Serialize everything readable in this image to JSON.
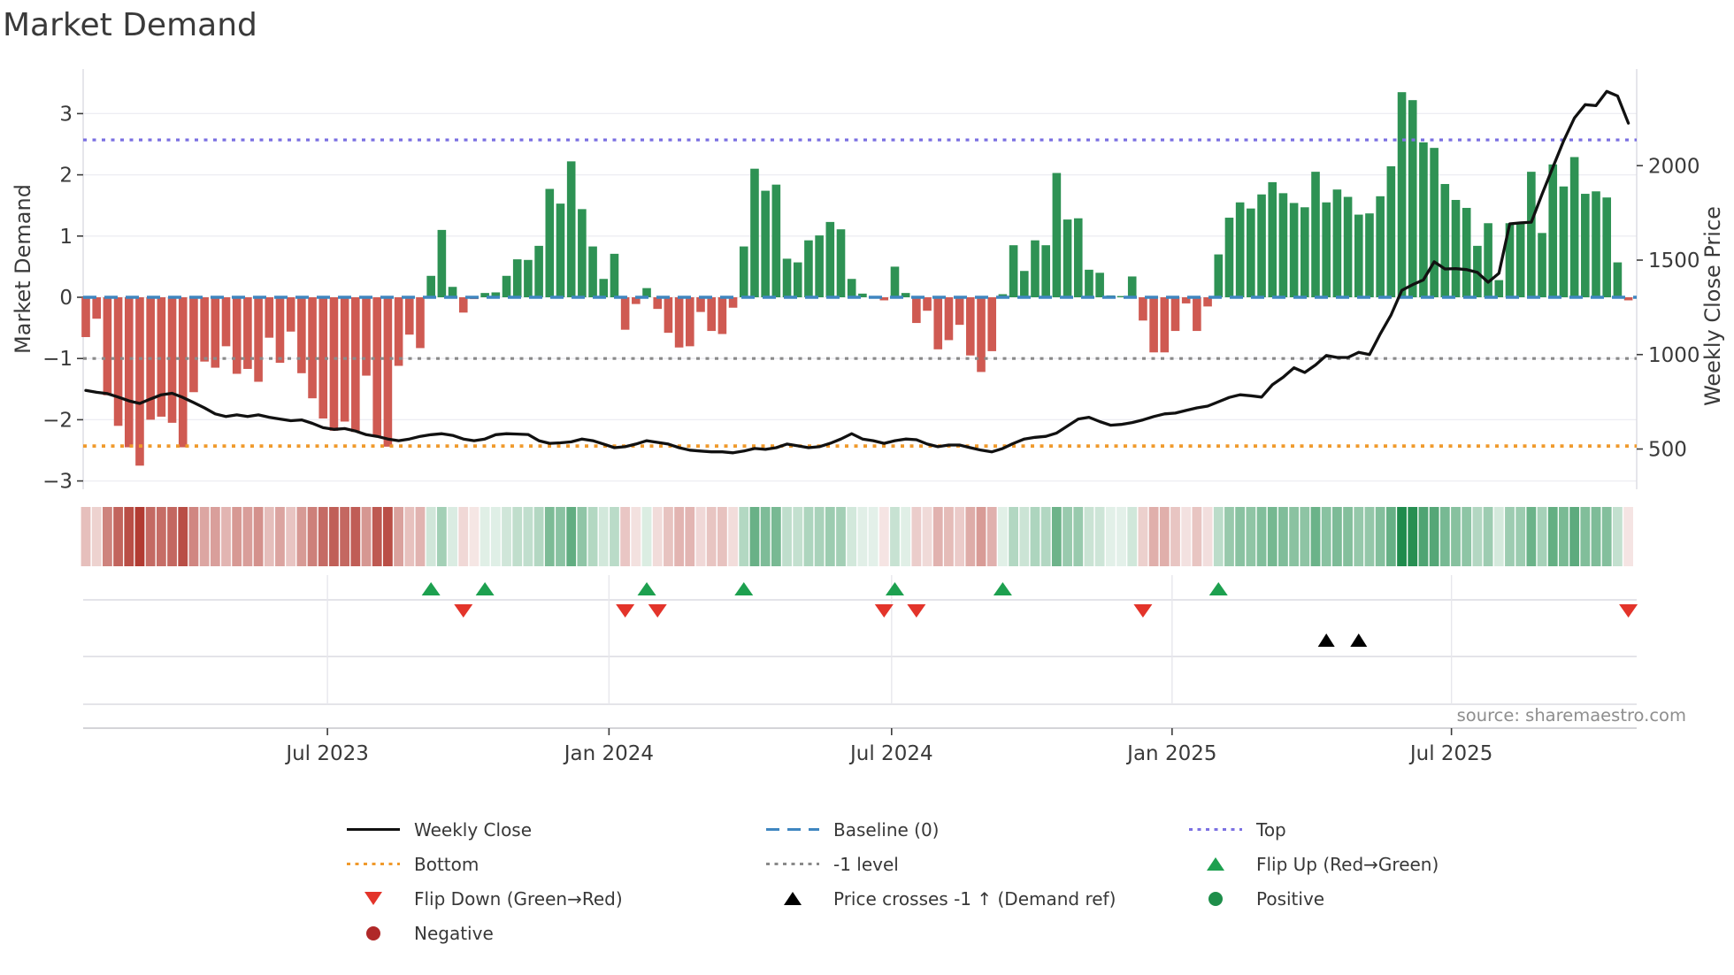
{
  "title": "Market Demand",
  "source": "source: sharemaestro.com",
  "left_axis": {
    "label": "Market Demand",
    "ticks": [
      3,
      2,
      1,
      0,
      -1,
      -2,
      -3
    ]
  },
  "right_axis": {
    "label": "Weekly Close Price",
    "ticks": [
      2000,
      1500,
      1000,
      500
    ]
  },
  "x_axis": {
    "ticks": [
      {
        "label": "Jul 2023",
        "pos": 22.4
      },
      {
        "label": "Jan 2024",
        "pos": 48.5
      },
      {
        "label": "Jul 2024",
        "pos": 74.7
      },
      {
        "label": "Jan 2025",
        "pos": 100.7
      },
      {
        "label": "Jul 2025",
        "pos": 126.6
      }
    ]
  },
  "chart_data": {
    "type": "bar+line",
    "x_unit": "week",
    "n_points": 144,
    "left_ylim": [
      -3.15,
      3.95
    ],
    "right_ylim": [
      285,
      2560
    ],
    "grid": "horizontal",
    "series": [
      {
        "name": "Market Demand",
        "type": "bar",
        "axis": "left",
        "values": [
          -0.65,
          -0.35,
          -1.6,
          -2.1,
          -2.45,
          -2.75,
          -2.0,
          -1.95,
          -2.05,
          -2.45,
          -1.55,
          -1.05,
          -1.15,
          -0.8,
          -1.25,
          -1.17,
          -1.38,
          -0.66,
          -1.07,
          -0.56,
          -1.24,
          -1.65,
          -1.98,
          -2.18,
          -2.03,
          -2.2,
          -1.28,
          -2.27,
          -2.44,
          -1.12,
          -0.61,
          -0.83,
          0.35,
          1.1,
          0.17,
          -0.25,
          -0.03,
          0.07,
          0.08,
          0.35,
          0.62,
          0.61,
          0.84,
          1.77,
          1.53,
          2.22,
          1.44,
          0.83,
          0.3,
          0.71,
          -0.53,
          -0.11,
          0.15,
          -0.19,
          -0.58,
          -0.82,
          -0.8,
          -0.24,
          -0.55,
          -0.6,
          -0.17,
          0.83,
          2.1,
          1.74,
          1.84,
          0.63,
          0.57,
          0.93,
          1.01,
          1.23,
          1.11,
          0.3,
          0.06,
          0.02,
          -0.05,
          0.5,
          0.07,
          -0.42,
          -0.22,
          -0.85,
          -0.7,
          -0.45,
          -0.95,
          -1.22,
          -0.88,
          0.05,
          0.85,
          0.43,
          0.93,
          0.85,
          2.03,
          1.27,
          1.29,
          0.45,
          0.4,
          0.03,
          0.02,
          0.34,
          -0.38,
          -0.9,
          -0.9,
          -0.55,
          -0.1,
          -0.55,
          -0.15,
          0.7,
          1.3,
          1.55,
          1.45,
          1.68,
          1.88,
          1.7,
          1.54,
          1.47,
          2.05,
          1.55,
          1.76,
          1.64,
          1.35,
          1.37,
          1.65,
          2.14,
          3.35,
          3.22,
          2.53,
          2.44,
          1.85,
          1.59,
          1.46,
          0.84,
          1.21,
          0.28,
          1.21,
          1.22,
          2.05,
          1.05,
          2.17,
          1.81,
          2.29,
          1.69,
          1.73,
          1.63,
          0.57,
          -0.05
        ]
      },
      {
        "name": "Weekly Close",
        "type": "line",
        "axis": "right",
        "values": [
          810,
          800,
          793,
          775,
          755,
          741,
          765,
          787,
          795,
          773,
          746,
          718,
          686,
          672,
          681,
          672,
          681,
          668,
          659,
          650,
          654,
          636,
          613,
          604,
          608,
          595,
          576,
          567,
          553,
          544,
          553,
          567,
          576,
          581,
          572,
          553,
          544,
          553,
          576,
          581,
          579,
          577,
          544,
          530,
          533,
          538,
          553,
          544,
          526,
          507,
          512,
          526,
          544,
          535,
          526,
          507,
          494,
          489,
          485,
          485,
          480,
          489,
          503,
          498,
          507,
          526,
          517,
          507,
          512,
          530,
          553,
          581,
          553,
          544,
          530,
          544,
          553,
          549,
          526,
          512,
          521,
          521,
          507,
          494,
          485,
          503,
          530,
          553,
          562,
          567,
          585,
          622,
          659,
          668,
          645,
          626,
          630,
          640,
          654,
          672,
          686,
          690,
          704,
          718,
          727,
          750,
          773,
          787,
          782,
          775,
          840,
          880,
          930,
          905,
          945,
          995,
          985,
          985,
          1012,
          1000,
          1110,
          1210,
          1340,
          1370,
          1395,
          1491,
          1453,
          1455,
          1450,
          1435,
          1383,
          1430,
          1692,
          1697,
          1701,
          1850,
          1991,
          2131,
          2252,
          2323,
          2318,
          2393,
          2369,
          2225
        ]
      }
    ],
    "reference_lines": {
      "baseline": 0,
      "minus_one": -1,
      "top": 2.57,
      "bottom": -2.43
    },
    "heatmap_strip": {
      "source_series": "Market Demand",
      "note": "color intensity mirrors weekly demand value"
    },
    "markers": {
      "flip_up_weeks": [
        33,
        38,
        53,
        62,
        76,
        86,
        106
      ],
      "flip_down_weeks": [
        36,
        51,
        54,
        75,
        78,
        99,
        144
      ],
      "price_cross_weeks": [
        116,
        119
      ]
    }
  },
  "legend": {
    "columns": [
      {
        "items": [
          {
            "swatch": "line-solid",
            "color": "#111111",
            "label": "Weekly Close"
          },
          {
            "swatch": "line-dotted",
            "color": "#f09a2c",
            "label": "Bottom"
          },
          {
            "swatch": "triangle-down",
            "color": "#e3342a",
            "label": "Flip Down (Green→Red)"
          },
          {
            "swatch": "circle",
            "color": "#b02828",
            "label": "Negative"
          }
        ]
      },
      {
        "items": [
          {
            "swatch": "line-dashed",
            "color": "#3f86c0",
            "label": "Baseline (0)"
          },
          {
            "swatch": "line-dotted",
            "color": "#8a8a8a",
            "label": "-1 level"
          },
          {
            "swatch": "triangle-up",
            "color": "#000000",
            "label": "Price crosses -1 ↑ (Demand ref)"
          }
        ]
      },
      {
        "items": [
          {
            "swatch": "line-dotted",
            "color": "#7b70e2",
            "label": "Top"
          },
          {
            "swatch": "triangle-up",
            "color": "#1da04f",
            "label": "Flip Up (Red→Green)"
          },
          {
            "swatch": "circle",
            "color": "#1e8e4a",
            "label": "Positive"
          }
        ]
      }
    ]
  },
  "colors": {
    "bar_positive": "#2e9254",
    "bar_negative": "#cf5a52",
    "price_line": "#111111",
    "baseline": "#3f86c0",
    "top_line": "#7b70e2",
    "bottom_line": "#f09a2c",
    "minus_one_line": "#8a8a8a",
    "flip_up": "#1da04f",
    "flip_down": "#e3342a",
    "price_cross": "#000000",
    "heat_pos": "#1f8b4c",
    "heat_neg": "#b23b32",
    "grid": "#ededf2",
    "marker_grid": "#dcdce2",
    "axis_text": "#3a3a3a",
    "spine": "#d9d9e0",
    "x_spine": "#c6c6cc"
  }
}
